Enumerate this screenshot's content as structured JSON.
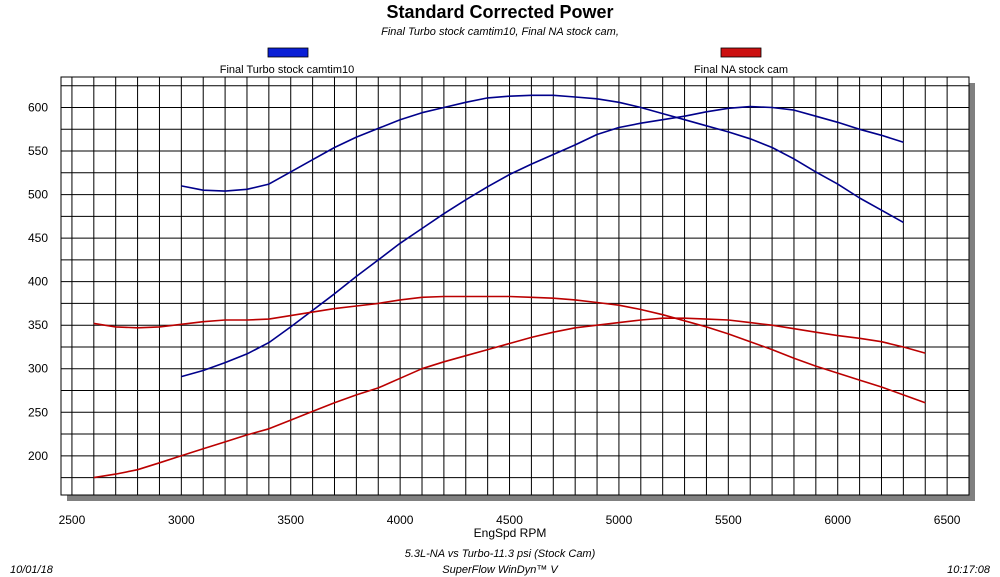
{
  "chart_data": {
    "type": "line",
    "title": "Standard Corrected Power",
    "subtitle": "Final Turbo stock camtim10, Final NA stock cam,",
    "xlabel": "EngSpd RPM",
    "ylabel": "",
    "xlim": [
      2450,
      6600
    ],
    "ylim": [
      155,
      635
    ],
    "x_ticks": [
      2500,
      3000,
      3500,
      4000,
      4500,
      5000,
      5500,
      6000,
      6500
    ],
    "y_ticks": [
      200,
      250,
      300,
      350,
      400,
      450,
      500,
      550,
      600
    ],
    "x_grid_step": 100,
    "y_grid_step": 25,
    "grid": true,
    "legend_position": "top",
    "legend": [
      {
        "label": "Final Turbo stock camtim10",
        "color": "#0a1fd6"
      },
      {
        "label": "Final NA stock cam",
        "color": "#cc1111"
      }
    ],
    "series": [
      {
        "color": "#00008b",
        "x": [
          3000,
          3100,
          3200,
          3300,
          3400,
          3500,
          3600,
          3700,
          3800,
          3900,
          4000,
          4100,
          4200,
          4300,
          4400,
          4500,
          4600,
          4700,
          4800,
          4900,
          5000,
          5100,
          5200,
          5300,
          5400,
          5500,
          5600,
          5700,
          5800,
          5900,
          6000,
          6100,
          6200,
          6300
        ],
        "values": [
          510,
          505,
          504,
          506,
          512,
          526,
          540,
          554,
          566,
          576,
          586,
          594,
          600,
          606,
          611,
          613,
          614,
          614,
          612,
          610,
          606,
          600,
          593,
          586,
          579,
          572,
          564,
          554,
          541,
          526,
          512,
          496,
          482,
          468
        ]
      },
      {
        "color": "#00008b",
        "x": [
          3000,
          3100,
          3200,
          3300,
          3400,
          3500,
          3600,
          3700,
          3800,
          3900,
          4000,
          4100,
          4200,
          4300,
          4400,
          4500,
          4600,
          4700,
          4800,
          4900,
          5000,
          5100,
          5200,
          5300,
          5400,
          5500,
          5600,
          5700,
          5800,
          5900,
          6000,
          6100,
          6200,
          6300
        ],
        "values": [
          291,
          298,
          307,
          317,
          330,
          348,
          367,
          386,
          406,
          425,
          444,
          461,
          478,
          494,
          509,
          523,
          535,
          546,
          557,
          569,
          577,
          582,
          586,
          590,
          595,
          599,
          601,
          600,
          597,
          590,
          583,
          575,
          568,
          560
        ]
      },
      {
        "color": "#bb0000",
        "x": [
          2600,
          2700,
          2800,
          2900,
          3000,
          3100,
          3200,
          3300,
          3400,
          3500,
          3600,
          3700,
          3800,
          3900,
          4000,
          4100,
          4200,
          4300,
          4400,
          4500,
          4600,
          4700,
          4800,
          4900,
          5000,
          5100,
          5200,
          5300,
          5400,
          5500,
          5600,
          5700,
          5800,
          5900,
          6000,
          6100,
          6200,
          6300,
          6400
        ],
        "values": [
          352,
          348,
          347,
          348,
          351,
          354,
          356,
          356,
          357,
          361,
          365,
          369,
          372,
          375,
          379,
          382,
          383,
          383,
          383,
          383,
          382,
          381,
          379,
          376,
          373,
          368,
          362,
          355,
          348,
          340,
          331,
          322,
          312,
          303,
          295,
          287,
          279,
          270,
          261
        ]
      },
      {
        "color": "#bb0000",
        "x": [
          2600,
          2700,
          2800,
          2900,
          3000,
          3100,
          3200,
          3300,
          3400,
          3500,
          3600,
          3700,
          3800,
          3900,
          4000,
          4100,
          4200,
          4300,
          4400,
          4500,
          4600,
          4700,
          4800,
          4900,
          5000,
          5100,
          5200,
          5300,
          5400,
          5500,
          5600,
          5700,
          5800,
          5900,
          6000,
          6100,
          6200,
          6300,
          6400
        ],
        "values": [
          175,
          179,
          184,
          192,
          200,
          208,
          216,
          224,
          231,
          241,
          251,
          261,
          270,
          278,
          289,
          300,
          308,
          315,
          322,
          329,
          336,
          342,
          347,
          350,
          353,
          356,
          358,
          358,
          357,
          356,
          353,
          350,
          346,
          342,
          338,
          335,
          331,
          325,
          318
        ]
      }
    ]
  },
  "footer": {
    "left": "10/01/18",
    "center_line1": "5.3L-NA vs Turbo-11.3 psi (Stock Cam)",
    "center_line2": "SuperFlow WinDyn™ V",
    "right": "10:17:08"
  }
}
